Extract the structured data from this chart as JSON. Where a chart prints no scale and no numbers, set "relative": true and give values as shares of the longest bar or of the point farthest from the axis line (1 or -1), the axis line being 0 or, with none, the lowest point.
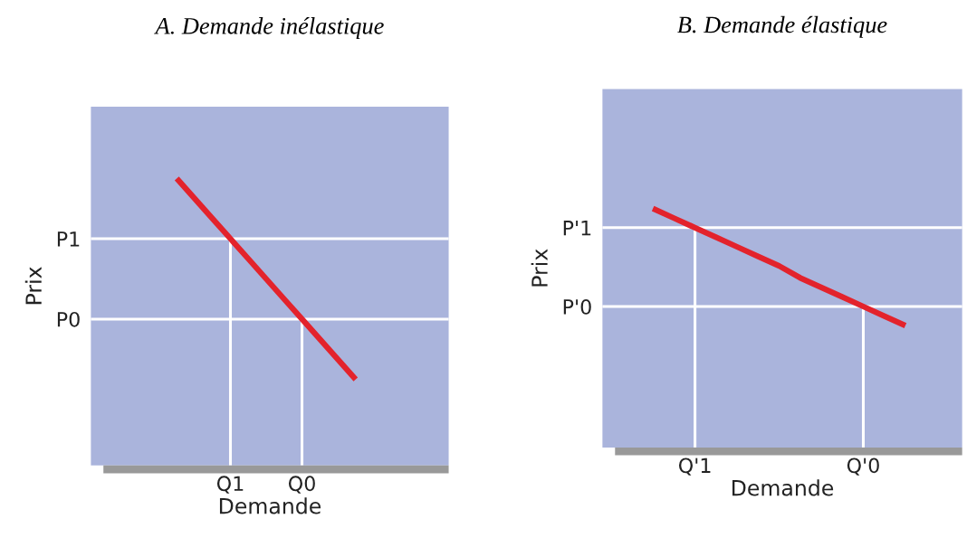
{
  "chart_data": [
    {
      "type": "line",
      "relative": true,
      "title": "A. Demande inélastique",
      "xlabel": "Demande",
      "ylabel": "Prix",
      "categories": [
        null,
        null,
        null,
        "Q1",
        null,
        null,
        null,
        "Q0",
        null,
        null,
        null
      ],
      "series": [
        {
          "color": "#e3232c",
          "values": [
            1,
            0.93,
            0.86,
            0.79,
            0.72,
            0.65,
            0.58,
            0.51,
            0.44,
            0.37,
            0.3
          ]
        }
      ],
      "ref_lines": [
        {
          "axis": "y",
          "value": 0.79,
          "label": "P1",
          "color": "#ffffff"
        },
        {
          "axis": "y",
          "value": 0.51,
          "label": "P0",
          "color": "#ffffff"
        }
      ]
    },
    {
      "type": "line",
      "relative": true,
      "title": "B. Demande élastique",
      "xlabel": "Demande",
      "ylabel": "Prix",
      "categories": [
        null,
        null,
        "Q'1",
        null,
        null,
        null,
        null,
        null,
        null,
        null,
        "Q'0",
        null,
        null
      ],
      "series": [
        {
          "color": "#e3232c",
          "values": [
            1,
            0.96,
            0.92,
            0.88,
            0.84,
            0.8,
            0.76,
            0.71,
            0.67,
            0.63,
            0.59,
            0.55,
            0.51
          ]
        }
      ],
      "ref_lines": [
        {
          "axis": "y",
          "value": 0.92,
          "label": "P'1",
          "color": "#ffffff"
        },
        {
          "axis": "y",
          "value": 0.59,
          "label": "P'0",
          "color": "#ffffff"
        }
      ]
    }
  ]
}
